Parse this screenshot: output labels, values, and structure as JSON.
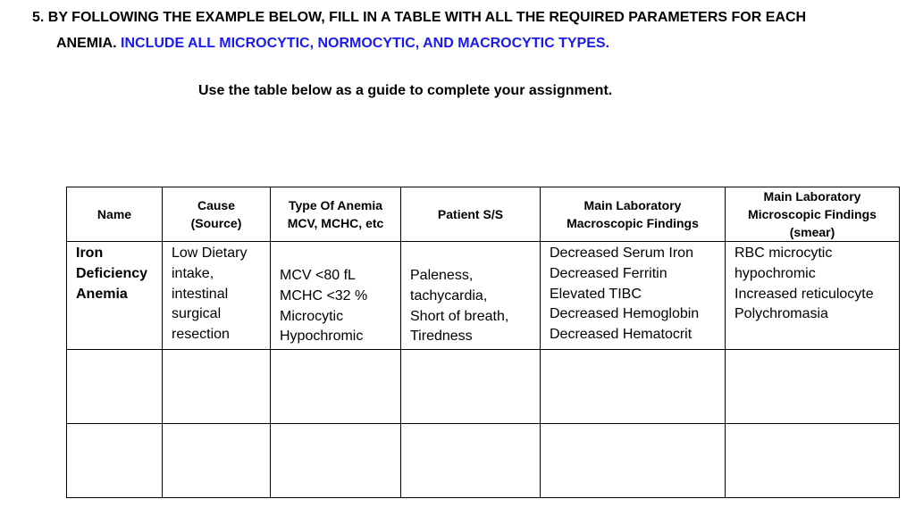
{
  "question": {
    "line1": "5. BY FOLLOWING THE EXAMPLE BELOW, FILL IN A TABLE WITH ALL THE REQUIRED PARAMETERS FOR EACH",
    "line2_black": "ANEMIA.",
    "line2_blue": "INCLUDE ALL MICROCYTIC, NORMOCYTIC, AND MACROCYTIC TYPES.",
    "accent_color": "#1a1aee"
  },
  "guide": "Use the table below as a guide to complete your assignment.",
  "table": {
    "headers": [
      [
        "Name"
      ],
      [
        "Cause",
        "(Source)"
      ],
      [
        "Type Of Anemia",
        "MCV, MCHC, etc"
      ],
      [
        "Patient S/S"
      ],
      [
        "Main Laboratory",
        "Macroscopic Findings"
      ],
      [
        "Main Laboratory",
        "Microscopic Findings",
        "(smear)"
      ]
    ],
    "example_row": {
      "name": [
        "Iron",
        "Deficiency",
        "Anemia"
      ],
      "cause": [
        "Low Dietary",
        "intake,",
        "intestinal",
        "surgical",
        "resection"
      ],
      "type": [
        "MCV <80 fL",
        "MCHC <32 %",
        "Microcytic",
        "Hypochromic"
      ],
      "ss": [
        "Paleness,",
        "tachycardia,",
        "Short of breath,",
        "Tiredness"
      ],
      "macro": [
        "Decreased Serum Iron",
        "Decreased Ferritin",
        "Elevated TIBC",
        "Decreased Hemoglobin",
        "Decreased Hematocrit"
      ],
      "micro": [
        "RBC microcytic",
        "hypochromic",
        "Increased reticulocyte",
        "Polychromasia"
      ]
    }
  }
}
